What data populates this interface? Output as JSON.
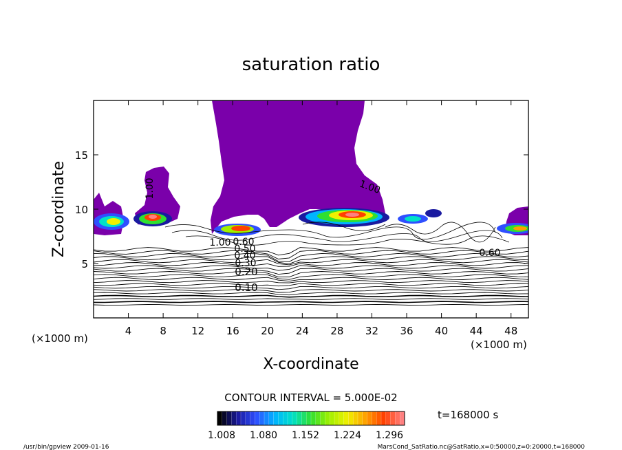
{
  "chart_data": {
    "type": "contour",
    "title": "saturation ratio",
    "xlabel": "X-coordinate",
    "ylabel": "Z-coordinate",
    "x_unit": "(×1000 m)",
    "y_unit": "(×1000 m)",
    "xlim": [
      0,
      50
    ],
    "ylim": [
      0,
      20
    ],
    "x_ticks": [
      4,
      8,
      12,
      16,
      20,
      24,
      28,
      32,
      36,
      40,
      44,
      48
    ],
    "y_ticks": [
      5,
      10,
      15
    ],
    "contour_interval": "CONTOUR INTERVAL = 5.000E-02",
    "contour_labels": [
      "0.10",
      "0.20",
      "0.30",
      "0.40",
      "0.50",
      "0.60",
      "1.00",
      "1.00",
      "1.00",
      "0.60"
    ],
    "line_contour_levels": [
      0.05,
      0.1,
      0.15,
      0.2,
      0.25,
      0.3,
      0.35,
      0.4,
      0.45,
      0.5,
      0.55,
      0.6,
      0.65,
      0.7,
      0.75,
      0.8,
      0.85,
      0.9,
      0.95,
      1.0
    ],
    "colorbar": {
      "tick_labels": [
        "1.008",
        "1.080",
        "1.152",
        "1.224",
        "1.296"
      ],
      "colors": [
        "#000000",
        "#1a1aa0",
        "#2f4fff",
        "#00b4ff",
        "#00e0c8",
        "#30e030",
        "#a0f000",
        "#f0f000",
        "#ffa000",
        "#ff4000",
        "#ff8080"
      ]
    },
    "time_label": "t=168000 s",
    "supersaturated_fill_color": "#7a00aa",
    "grid": false
  },
  "footer": {
    "left": "/usr/bin/gpview   2009-01-16",
    "right": "MarsCond_SatRatio.nc@SatRatio,x=0:50000,z=0:20000,t=168000"
  }
}
